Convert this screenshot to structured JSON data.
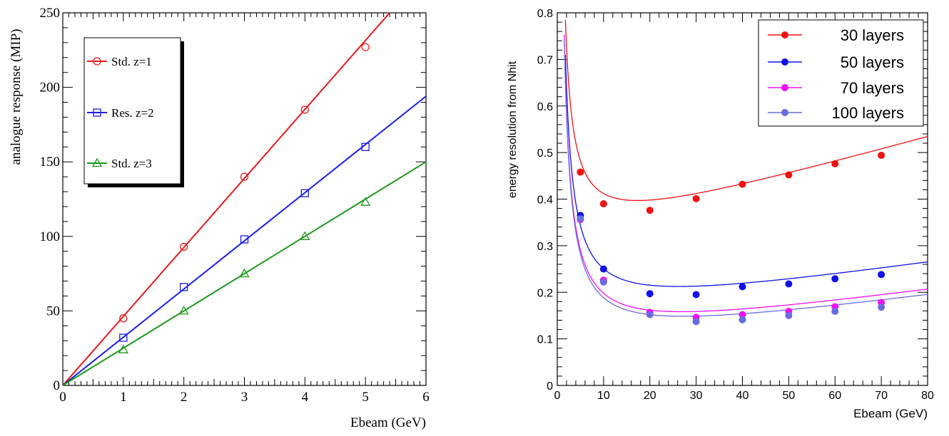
{
  "chart_data": [
    {
      "type": "line",
      "title": "",
      "xlabel": "Ebeam (GeV)",
      "ylabel": "analogue response (MIP)",
      "xlim": [
        0,
        6
      ],
      "ylim": [
        0,
        250
      ],
      "x_ticks": [
        "0",
        "1",
        "2",
        "3",
        "4",
        "5",
        "6"
      ],
      "y_ticks": [
        "0",
        "50",
        "100",
        "150",
        "200",
        "250"
      ],
      "grid": false,
      "legend_position": "top-left",
      "series": [
        {
          "name": "Std. z=1",
          "color": "#e8191c",
          "marker": "open-circle",
          "x": [
            1,
            2,
            3,
            4,
            5
          ],
          "y": [
            45,
            93,
            140,
            185,
            227
          ],
          "fit": {
            "x": [
              0,
              5.4
            ],
            "y": [
              0,
              250
            ]
          }
        },
        {
          "name": "Res. z=2",
          "color": "#1c1ce8",
          "marker": "open-square",
          "x": [
            1,
            2,
            3,
            4,
            5
          ],
          "y": [
            32,
            66,
            98,
            129,
            160
          ],
          "fit": {
            "x": [
              0,
              6
            ],
            "y": [
              0,
              194
            ]
          }
        },
        {
          "name": "Std. z=3",
          "color": "#1c9a1c",
          "marker": "open-triangle",
          "x": [
            1,
            2,
            3,
            4,
            5
          ],
          "y": [
            24,
            50,
            75,
            100,
            123
          ],
          "fit": {
            "x": [
              0,
              6
            ],
            "y": [
              0,
              150
            ]
          }
        }
      ]
    },
    {
      "type": "scatter",
      "title": "",
      "xlabel": "Ebeam (GeV)",
      "ylabel": "energy resolution from Nhit",
      "xlim": [
        0,
        80
      ],
      "ylim": [
        0,
        0.8
      ],
      "x_ticks": [
        "0",
        "10",
        "20",
        "30",
        "40",
        "50",
        "60",
        "70",
        "80"
      ],
      "y_ticks": [
        "0",
        "0.1",
        "0.2",
        "0.3",
        "0.4",
        "0.5",
        "0.6",
        "0.7",
        "0.8"
      ],
      "grid": false,
      "legend_position": "top-right",
      "series": [
        {
          "name": "30 layers",
          "color": "#f01010",
          "marker": "filled-circle",
          "x": [
            5,
            10,
            20,
            30,
            40,
            50,
            60,
            70
          ],
          "y": [
            0.458,
            0.39,
            0.376,
            0.401,
            0.432,
            0.452,
            0.476,
            0.494
          ],
          "fit": {
            "a": 0.84,
            "b": 0.3,
            "c": 0.0028
          }
        },
        {
          "name": "50 layers",
          "color": "#1010e8",
          "marker": "filled-circle",
          "x": [
            5,
            10,
            20,
            30,
            40,
            50,
            60,
            70
          ],
          "y": [
            0.365,
            0.25,
            0.197,
            0.195,
            0.212,
            0.218,
            0.229,
            0.238
          ],
          "fit": {
            "a": 1.0,
            "b": 0.136,
            "c": 0.00146
          }
        },
        {
          "name": "70 layers",
          "color": "#f010f0",
          "marker": "filled-circle",
          "x": [
            5,
            10,
            20,
            30,
            40,
            50,
            60,
            70
          ],
          "y": [
            0.356,
            0.226,
            0.157,
            0.146,
            0.152,
            0.159,
            0.169,
            0.178
          ],
          "fit": {
            "a": 1.0,
            "b": 0.084,
            "c": 0.00138
          }
        },
        {
          "name": "100 layers",
          "color": "#6b6be0",
          "marker": "filled-circle",
          "x": [
            5,
            10,
            20,
            30,
            40,
            50,
            60,
            70
          ],
          "y": [
            0.358,
            0.222,
            0.152,
            0.137,
            0.141,
            0.15,
            0.159,
            0.168
          ],
          "fit": {
            "a": 1.0,
            "b": 0.075,
            "c": 0.00135
          }
        }
      ]
    }
  ]
}
